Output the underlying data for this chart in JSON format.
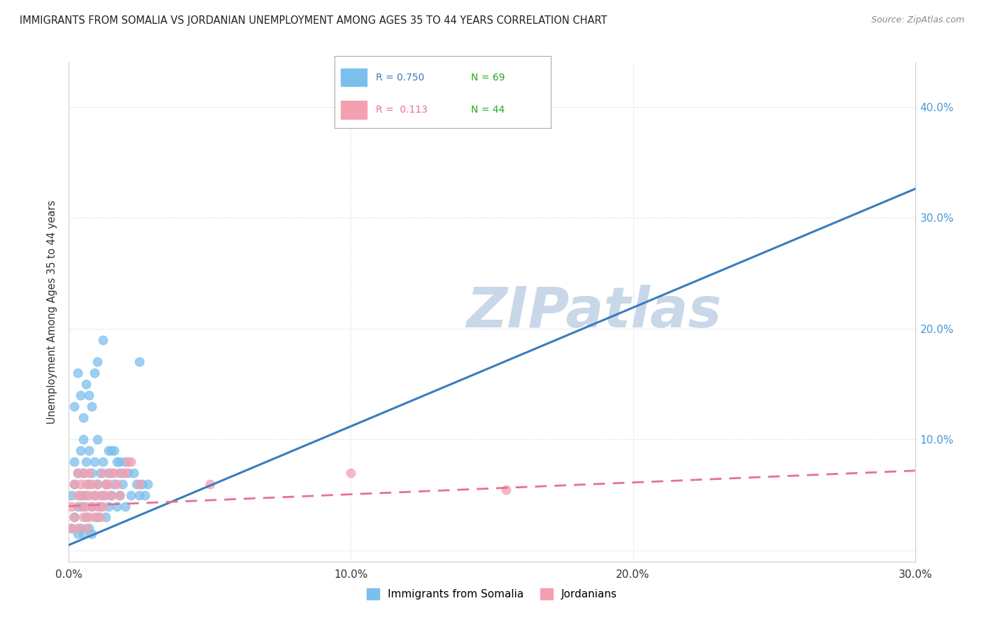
{
  "title": "IMMIGRANTS FROM SOMALIA VS JORDANIAN UNEMPLOYMENT AMONG AGES 35 TO 44 YEARS CORRELATION CHART",
  "source_text": "Source: ZipAtlas.com",
  "ylabel": "Unemployment Among Ages 35 to 44 years",
  "xlim": [
    0.0,
    0.3
  ],
  "ylim": [
    -0.01,
    0.44
  ],
  "yticks": [
    0.0,
    0.1,
    0.2,
    0.3,
    0.4
  ],
  "ytick_labels": [
    "",
    "10.0%",
    "20.0%",
    "30.0%",
    "40.0%"
  ],
  "xticks": [
    0.0,
    0.1,
    0.2,
    0.3
  ],
  "xtick_labels": [
    "0.0%",
    "10.0%",
    "20.0%",
    "30.0%"
  ],
  "legend_r1": "R = 0.750",
  "legend_n1": "N = 69",
  "legend_r2": "R =  0.113",
  "legend_n2": "N = 44",
  "color_somalia": "#7bbfed",
  "color_jordan": "#f4a0b0",
  "color_somalia_line": "#3a7bbf",
  "color_jordan_line": "#e87090",
  "watermark": "ZIPatlas",
  "watermark_color": "#c8d8e8",
  "background_color": "#ffffff",
  "somalia_scatter_x": [
    0.001,
    0.001,
    0.002,
    0.002,
    0.002,
    0.003,
    0.003,
    0.003,
    0.004,
    0.004,
    0.004,
    0.005,
    0.005,
    0.005,
    0.005,
    0.006,
    0.006,
    0.006,
    0.007,
    0.007,
    0.007,
    0.008,
    0.008,
    0.008,
    0.009,
    0.009,
    0.01,
    0.01,
    0.01,
    0.011,
    0.011,
    0.012,
    0.012,
    0.013,
    0.013,
    0.014,
    0.014,
    0.015,
    0.015,
    0.016,
    0.017,
    0.017,
    0.018,
    0.018,
    0.019,
    0.02,
    0.021,
    0.022,
    0.023,
    0.024,
    0.025,
    0.026,
    0.027,
    0.028,
    0.002,
    0.003,
    0.004,
    0.005,
    0.006,
    0.007,
    0.008,
    0.009,
    0.01,
    0.012,
    0.014,
    0.016,
    0.018,
    0.02,
    0.025
  ],
  "somalia_scatter_y": [
    0.02,
    0.05,
    0.03,
    0.06,
    0.08,
    0.04,
    0.07,
    0.015,
    0.05,
    0.09,
    0.02,
    0.04,
    0.07,
    0.1,
    0.015,
    0.05,
    0.08,
    0.03,
    0.06,
    0.09,
    0.02,
    0.04,
    0.07,
    0.015,
    0.05,
    0.08,
    0.03,
    0.06,
    0.1,
    0.04,
    0.07,
    0.05,
    0.08,
    0.03,
    0.06,
    0.04,
    0.07,
    0.05,
    0.09,
    0.06,
    0.04,
    0.08,
    0.05,
    0.07,
    0.06,
    0.04,
    0.07,
    0.05,
    0.07,
    0.06,
    0.05,
    0.06,
    0.05,
    0.06,
    0.13,
    0.16,
    0.14,
    0.12,
    0.15,
    0.14,
    0.13,
    0.16,
    0.17,
    0.19,
    0.09,
    0.09,
    0.08,
    0.08,
    0.17
  ],
  "jordan_scatter_x": [
    0.001,
    0.001,
    0.002,
    0.002,
    0.003,
    0.003,
    0.003,
    0.004,
    0.004,
    0.005,
    0.005,
    0.005,
    0.006,
    0.006,
    0.006,
    0.007,
    0.007,
    0.007,
    0.008,
    0.008,
    0.009,
    0.009,
    0.01,
    0.01,
    0.011,
    0.011,
    0.012,
    0.012,
    0.013,
    0.013,
    0.014,
    0.015,
    0.015,
    0.016,
    0.017,
    0.018,
    0.019,
    0.02,
    0.021,
    0.022,
    0.025,
    0.05,
    0.1,
    0.155
  ],
  "jordan_scatter_y": [
    0.02,
    0.04,
    0.03,
    0.06,
    0.02,
    0.05,
    0.07,
    0.04,
    0.06,
    0.03,
    0.05,
    0.07,
    0.04,
    0.06,
    0.02,
    0.03,
    0.05,
    0.07,
    0.04,
    0.06,
    0.03,
    0.05,
    0.04,
    0.06,
    0.03,
    0.05,
    0.04,
    0.07,
    0.05,
    0.06,
    0.06,
    0.05,
    0.07,
    0.07,
    0.06,
    0.05,
    0.07,
    0.07,
    0.08,
    0.08,
    0.06,
    0.06,
    0.07,
    0.055
  ],
  "somalia_line_x": [
    0.0,
    0.3
  ],
  "somalia_line_y": [
    0.005,
    0.326
  ],
  "jordan_line_x": [
    0.0,
    0.3
  ],
  "jordan_line_y": [
    0.04,
    0.072
  ]
}
